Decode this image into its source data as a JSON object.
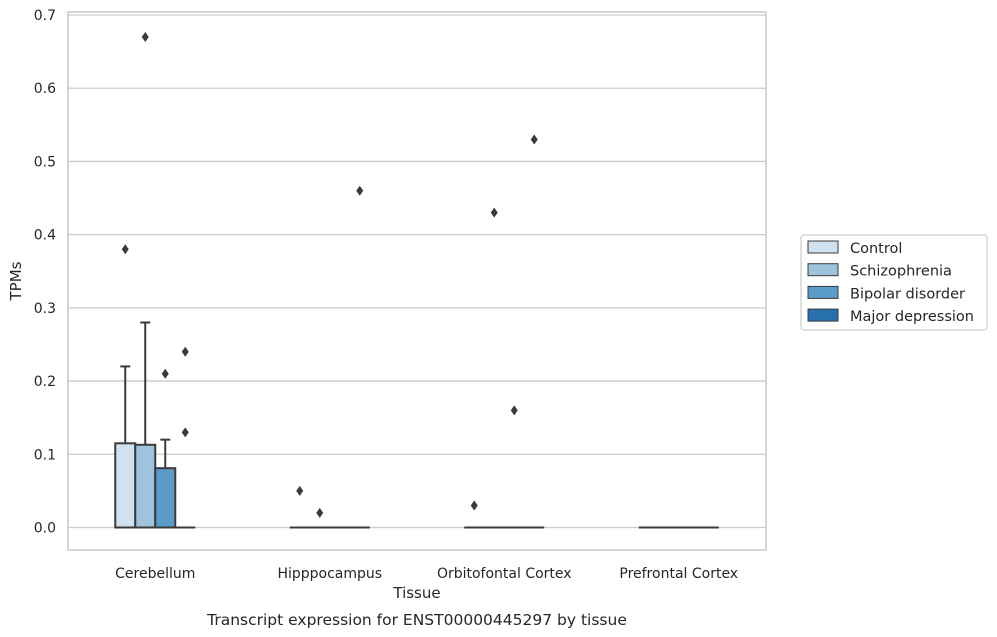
{
  "chart_data": {
    "type": "box",
    "caption": "Transcript expression for ENST00000445297 by tissue",
    "xlabel": "Tissue",
    "ylabel": "TPMs",
    "ylim": [
      -0.032,
      0.705
    ],
    "yticks": [
      0.0,
      0.1,
      0.2,
      0.3,
      0.4,
      0.5,
      0.6,
      0.7
    ],
    "ytick_labels": [
      "0.0",
      "0.1",
      "0.2",
      "0.3",
      "0.4",
      "0.5",
      "0.6",
      "0.7"
    ],
    "grid": true,
    "legend_position": "right",
    "categories": [
      "Cerebellum",
      "Hipppocampus",
      "Orbitofontal Cortex",
      "Prefrontal Cortex"
    ],
    "series": [
      {
        "name": "Control",
        "color": "#d0e1f0",
        "boxes": [
          {
            "min": 0.0,
            "q1": 0.0,
            "median": 0.0,
            "q3": 0.115,
            "max": 0.22,
            "outliers": [
              0.38
            ]
          },
          {
            "min": 0.0,
            "q1": 0.0,
            "median": 0.0,
            "q3": 0.0,
            "max": 0.0,
            "outliers": [
              0.05
            ]
          },
          {
            "min": 0.0,
            "q1": 0.0,
            "median": 0.0,
            "q3": 0.0,
            "max": 0.0,
            "outliers": [
              0.03
            ]
          },
          {
            "min": 0.0,
            "q1": 0.0,
            "median": 0.0,
            "q3": 0.0,
            "max": 0.0,
            "outliers": []
          }
        ]
      },
      {
        "name": "Schizophrenia",
        "color": "#9dc3dd",
        "boxes": [
          {
            "min": 0.0,
            "q1": 0.0,
            "median": 0.0,
            "q3": 0.113,
            "max": 0.28,
            "outliers": [
              0.67
            ]
          },
          {
            "min": 0.0,
            "q1": 0.0,
            "median": 0.0,
            "q3": 0.0,
            "max": 0.0,
            "outliers": [
              0.02
            ]
          },
          {
            "min": 0.0,
            "q1": 0.0,
            "median": 0.0,
            "q3": 0.0,
            "max": 0.0,
            "outliers": [
              0.43
            ]
          },
          {
            "min": 0.0,
            "q1": 0.0,
            "median": 0.0,
            "q3": 0.0,
            "max": 0.0,
            "outliers": []
          }
        ]
      },
      {
        "name": "Bipolar disorder",
        "color": "#5a9bc8",
        "boxes": [
          {
            "min": 0.0,
            "q1": 0.0,
            "median": 0.0,
            "q3": 0.081,
            "max": 0.12,
            "outliers": [
              0.21
            ]
          },
          {
            "min": 0.0,
            "q1": 0.0,
            "median": 0.0,
            "q3": 0.0,
            "max": 0.0,
            "outliers": []
          },
          {
            "min": 0.0,
            "q1": 0.0,
            "median": 0.0,
            "q3": 0.0,
            "max": 0.0,
            "outliers": [
              0.16
            ]
          },
          {
            "min": 0.0,
            "q1": 0.0,
            "median": 0.0,
            "q3": 0.0,
            "max": 0.0,
            "outliers": []
          }
        ]
      },
      {
        "name": "Major depression",
        "color": "#2870ad",
        "boxes": [
          {
            "min": 0.0,
            "q1": 0.0,
            "median": 0.0,
            "q3": 0.0,
            "max": 0.0,
            "outliers": [
              0.13,
              0.24
            ]
          },
          {
            "min": 0.0,
            "q1": 0.0,
            "median": 0.0,
            "q3": 0.0,
            "max": 0.0,
            "outliers": [
              0.46
            ]
          },
          {
            "min": 0.0,
            "q1": 0.0,
            "median": 0.0,
            "q3": 0.0,
            "max": 0.0,
            "outliers": [
              0.53
            ]
          },
          {
            "min": 0.0,
            "q1": 0.0,
            "median": 0.0,
            "q3": 0.0,
            "max": 0.0,
            "outliers": []
          }
        ]
      }
    ]
  }
}
